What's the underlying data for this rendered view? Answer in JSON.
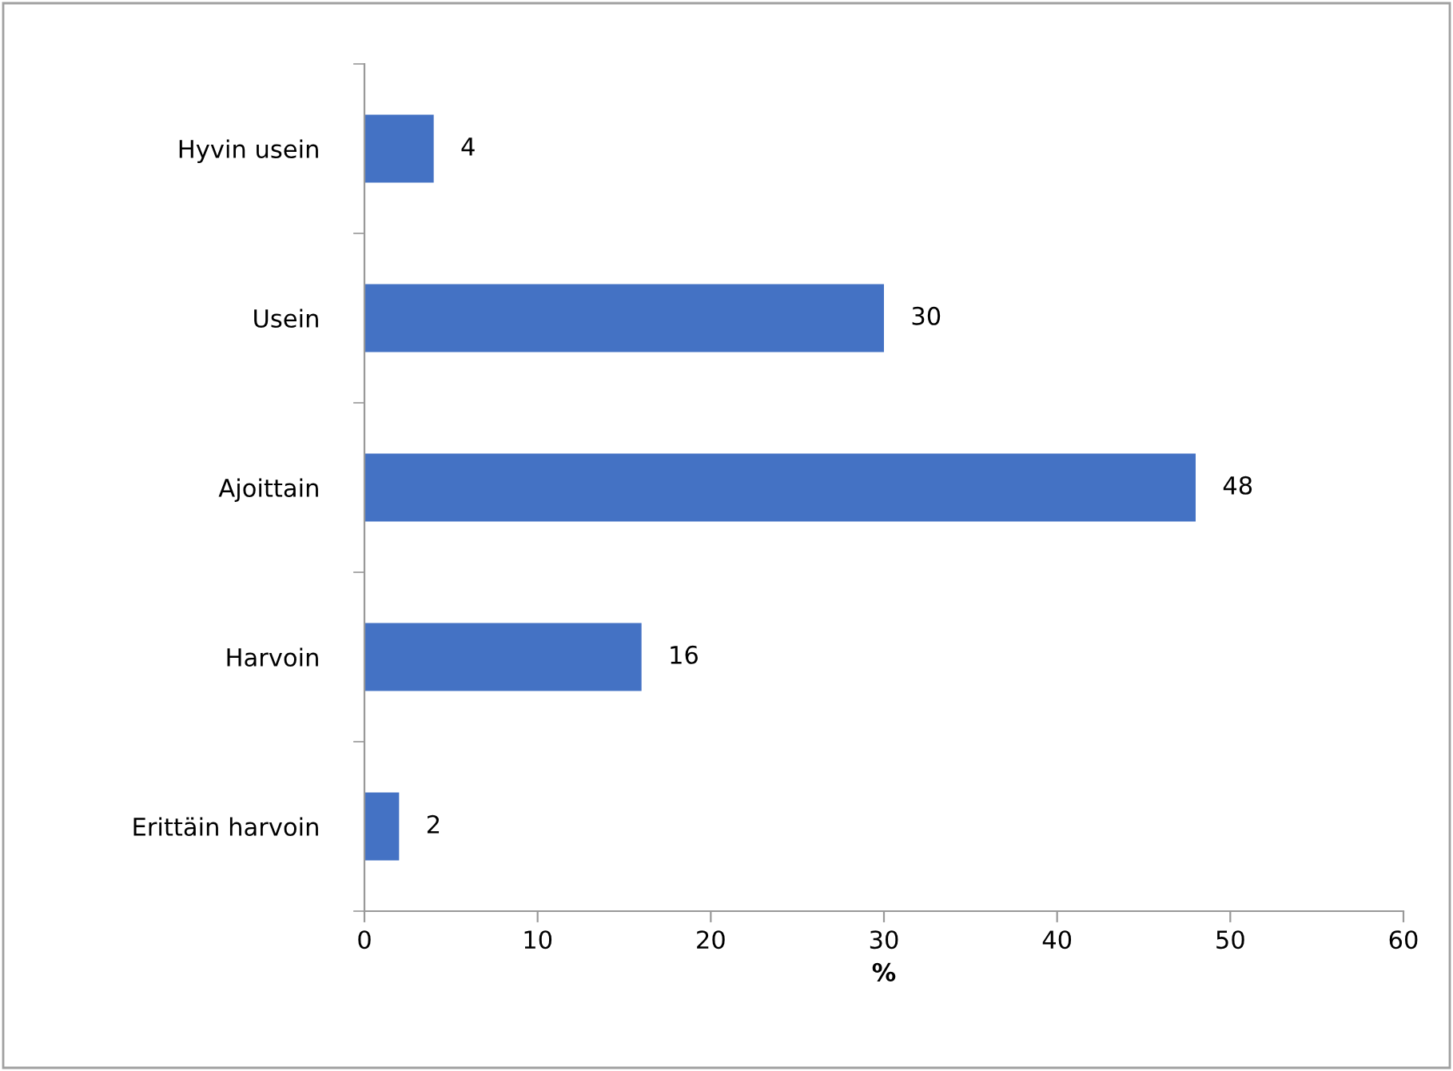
{
  "chart_data": {
    "type": "bar",
    "orientation": "horizontal",
    "categories": [
      "Hyvin usein",
      "Usein",
      "Ajoittain",
      "Harvoin",
      "Erittäin harvoin"
    ],
    "values": [
      4,
      30,
      48,
      16,
      2
    ],
    "color": "#4472c4",
    "xlabel": "%",
    "xlim": [
      0,
      60
    ],
    "xticks": [
      0,
      10,
      20,
      30,
      40,
      50,
      60
    ],
    "data_labels": true,
    "grid": false,
    "legend": false
  }
}
